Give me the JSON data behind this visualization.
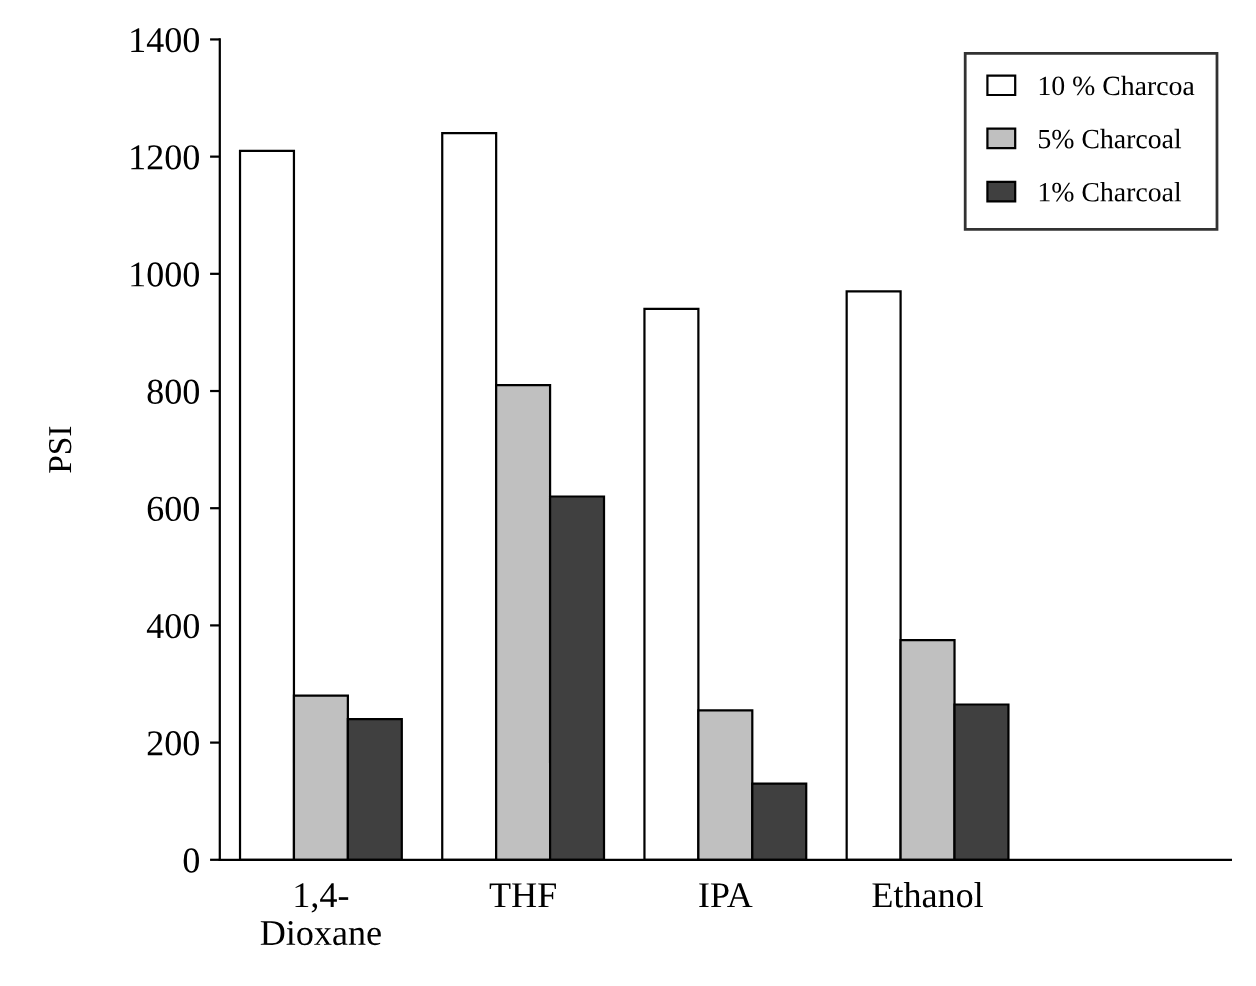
{
  "chart_data": {
    "type": "bar",
    "ylabel": "PSI",
    "categories": [
      "1,4-\nDioxane",
      "THF",
      "IPA",
      "Ethanol",
      null
    ],
    "series": [
      {
        "name": "10 % Charcoa",
        "color": "#ffffff",
        "values": [
          1210,
          1240,
          940,
          970,
          null
        ]
      },
      {
        "name": "5% Charcoal",
        "color": "#c0c0c0",
        "values": [
          280,
          810,
          255,
          375,
          null
        ]
      },
      {
        "name": "1% Charcoal",
        "color": "#404040",
        "values": [
          240,
          620,
          130,
          265,
          null
        ]
      }
    ],
    "ylim": [
      0,
      1400
    ],
    "yticks": [
      0,
      200,
      400,
      600,
      800,
      1000,
      1200,
      1400
    ],
    "grid": false,
    "legend": "top right"
  }
}
